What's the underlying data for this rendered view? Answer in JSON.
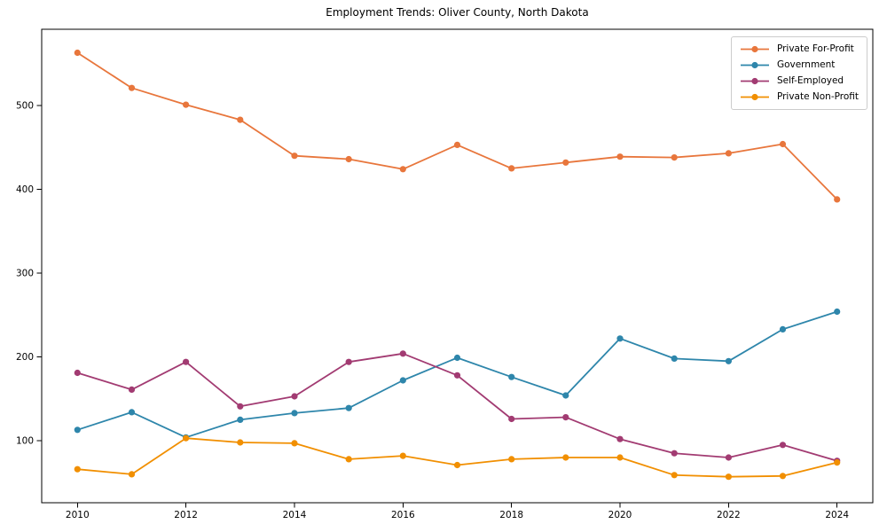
{
  "chart_data": {
    "type": "line",
    "title": "Employment Trends: Oliver County, North Dakota",
    "xlabel": "",
    "ylabel": "",
    "grid": false,
    "legend_position": "upper right",
    "x": [
      2010,
      2011,
      2012,
      2013,
      2014,
      2015,
      2016,
      2017,
      2018,
      2019,
      2020,
      2021,
      2022,
      2023,
      2024
    ],
    "x_tick_labels": [
      "2010",
      "2012",
      "2014",
      "2016",
      "2018",
      "2020",
      "2022",
      "2024"
    ],
    "y_ticks": [
      100,
      200,
      300,
      400,
      500
    ],
    "ylim": [
      26,
      591
    ],
    "series": [
      {
        "name": "Private For-Profit",
        "color": "#E8763C",
        "values": [
          563,
          521,
          501,
          483,
          440,
          436,
          424,
          453,
          425,
          432,
          439,
          438,
          443,
          454,
          388
        ]
      },
      {
        "name": "Government",
        "color": "#2E86AB",
        "values": [
          113,
          134,
          104,
          125,
          133,
          139,
          172,
          199,
          176,
          154,
          222,
          198,
          195,
          233,
          254
        ]
      },
      {
        "name": "Self-Employed",
        "color": "#A23B72",
        "values": [
          181,
          161,
          194,
          141,
          153,
          194,
          204,
          178,
          126,
          128,
          102,
          85,
          80,
          95,
          76
        ]
      },
      {
        "name": "Private Non-Profit",
        "color": "#F18F01",
        "values": [
          66,
          60,
          103,
          98,
          97,
          78,
          82,
          71,
          78,
          80,
          80,
          59,
          57,
          58,
          74
        ]
      }
    ]
  }
}
